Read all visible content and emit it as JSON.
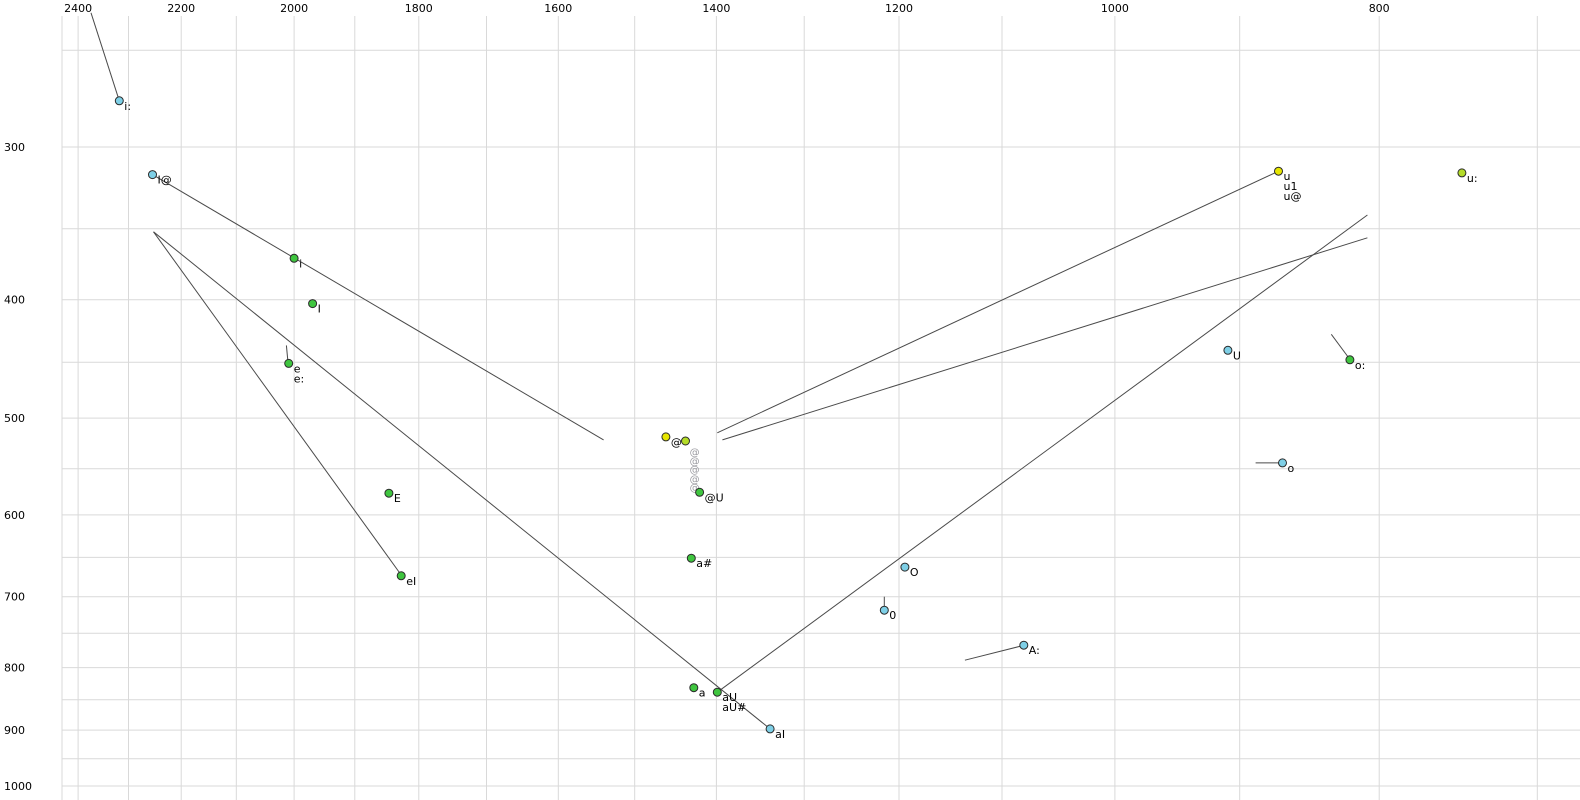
{
  "chart_data": {
    "type": "scatter",
    "title": "",
    "x_axis": {
      "position": "top",
      "scale": "log",
      "reversed": true,
      "ticks": [
        2400,
        2200,
        2000,
        1800,
        1600,
        1400,
        1200,
        1000,
        800
      ],
      "grid": {
        "min": 700,
        "max": 2400,
        "step": 100
      }
    },
    "y_axis": {
      "position": "left",
      "scale": "log",
      "reversed": true,
      "ticks": [
        300,
        400,
        500,
        600,
        700,
        800,
        900,
        1000
      ],
      "grid": {
        "min": 250,
        "max": 1000,
        "step": 50
      }
    },
    "points": [
      {
        "labels": [
          "i:"
        ],
        "f2": 2318,
        "f1": 275,
        "color": "cyan"
      },
      {
        "labels": [
          "I@"
        ],
        "f2": 2254,
        "f1": 316,
        "color": "cyan"
      },
      {
        "labels": [
          "i"
        ],
        "f2": 2000,
        "f1": 370,
        "color": "green"
      },
      {
        "labels": [
          "I"
        ],
        "f2": 1969,
        "f1": 403,
        "color": "green"
      },
      {
        "labels": [
          "e",
          "e:"
        ],
        "f2": 2009,
        "f1": 451,
        "color": "green"
      },
      {
        "labels": [
          "E"
        ],
        "f2": 1846,
        "f1": 576,
        "color": "green"
      },
      {
        "labels": [
          "eI"
        ],
        "f2": 1827,
        "f1": 673,
        "color": "green"
      },
      {
        "labels": [
          "@"
        ],
        "f2": 1461,
        "f1": 518,
        "color": "yellow"
      },
      {
        "labels": [],
        "f2": 1437,
        "f1": 522,
        "color": "yellowgreen"
      },
      {
        "labels": [
          "@U"
        ],
        "f2": 1420,
        "f1": 575,
        "color": "green"
      },
      {
        "labels": [
          "a#"
        ],
        "f2": 1430,
        "f1": 651,
        "color": "green"
      },
      {
        "labels": [
          "a"
        ],
        "f2": 1427,
        "f1": 831,
        "color": "green"
      },
      {
        "labels": [
          "aU",
          "aU#"
        ],
        "f2": 1399,
        "f1": 838,
        "color": "green"
      },
      {
        "labels": [
          "aI"
        ],
        "f2": 1338,
        "f1": 898,
        "color": "cyan"
      },
      {
        "labels": [
          "O"
        ],
        "f2": 1194,
        "f1": 662,
        "color": "cyan"
      },
      {
        "labels": [
          "0"
        ],
        "f2": 1215,
        "f1": 718,
        "color": "cyan"
      },
      {
        "labels": [
          "A:"
        ],
        "f2": 1080,
        "f1": 767,
        "color": "cyan"
      },
      {
        "labels": [
          "U"
        ],
        "f2": 909,
        "f1": 440,
        "color": "cyan"
      },
      {
        "labels": [
          "o"
        ],
        "f2": 868,
        "f1": 544,
        "color": "cyan"
      },
      {
        "labels": [
          "o:"
        ],
        "f2": 820,
        "f1": 448,
        "color": "green"
      },
      {
        "labels": [
          "u",
          "u1",
          "u@"
        ],
        "f2": 871,
        "f1": 314,
        "color": "yellow"
      },
      {
        "labels": [
          "u:"
        ],
        "f2": 746,
        "f1": 315,
        "color": "yellowgreen"
      }
    ],
    "schwa_marks": {
      "glyph": "@",
      "f2": 1426,
      "f1_list": [
        533,
        542,
        551,
        561,
        570
      ]
    },
    "trajectories": [
      {
        "from": [
          2374,
          233
        ],
        "to": [
          2318,
          275
        ]
      },
      {
        "from": [
          2254,
          316
        ],
        "to": [
          1540,
          521
        ]
      },
      {
        "from": [
          2252,
          352
        ],
        "to": [
          1338,
          898
        ]
      },
      {
        "from": [
          2252,
          352
        ],
        "to": [
          1827,
          672
        ]
      },
      {
        "from": [
          871,
          314
        ],
        "to": [
          1399,
          514
        ]
      },
      {
        "from": [
          808,
          356
        ],
        "to": [
          1393,
          521
        ]
      },
      {
        "from": [
          1399,
          838
        ],
        "to": [
          808,
          341
        ]
      },
      {
        "from": [
          2013,
          436
        ],
        "to": [
          2010,
          451
        ]
      },
      {
        "from": [
          1215,
          700
        ],
        "to": [
          1215,
          718
        ]
      },
      {
        "from": [
          1135,
          789
        ],
        "to": [
          1082,
          768
        ]
      },
      {
        "from": [
          888,
          544
        ],
        "to": [
          869,
          544
        ]
      },
      {
        "from": [
          833,
          427
        ],
        "to": [
          821,
          446
        ]
      }
    ],
    "colors": {
      "cyan": "#7ecfe6",
      "green": "#3fc53f",
      "yellow": "#e6e600",
      "yellowgreen": "#b4dc28",
      "gray_mark": "#9a9aa0",
      "grid": "#d9d9d9",
      "trajectory": "#4a4a4a",
      "point_stroke": "#2a2a2a",
      "text": "#000000"
    }
  }
}
